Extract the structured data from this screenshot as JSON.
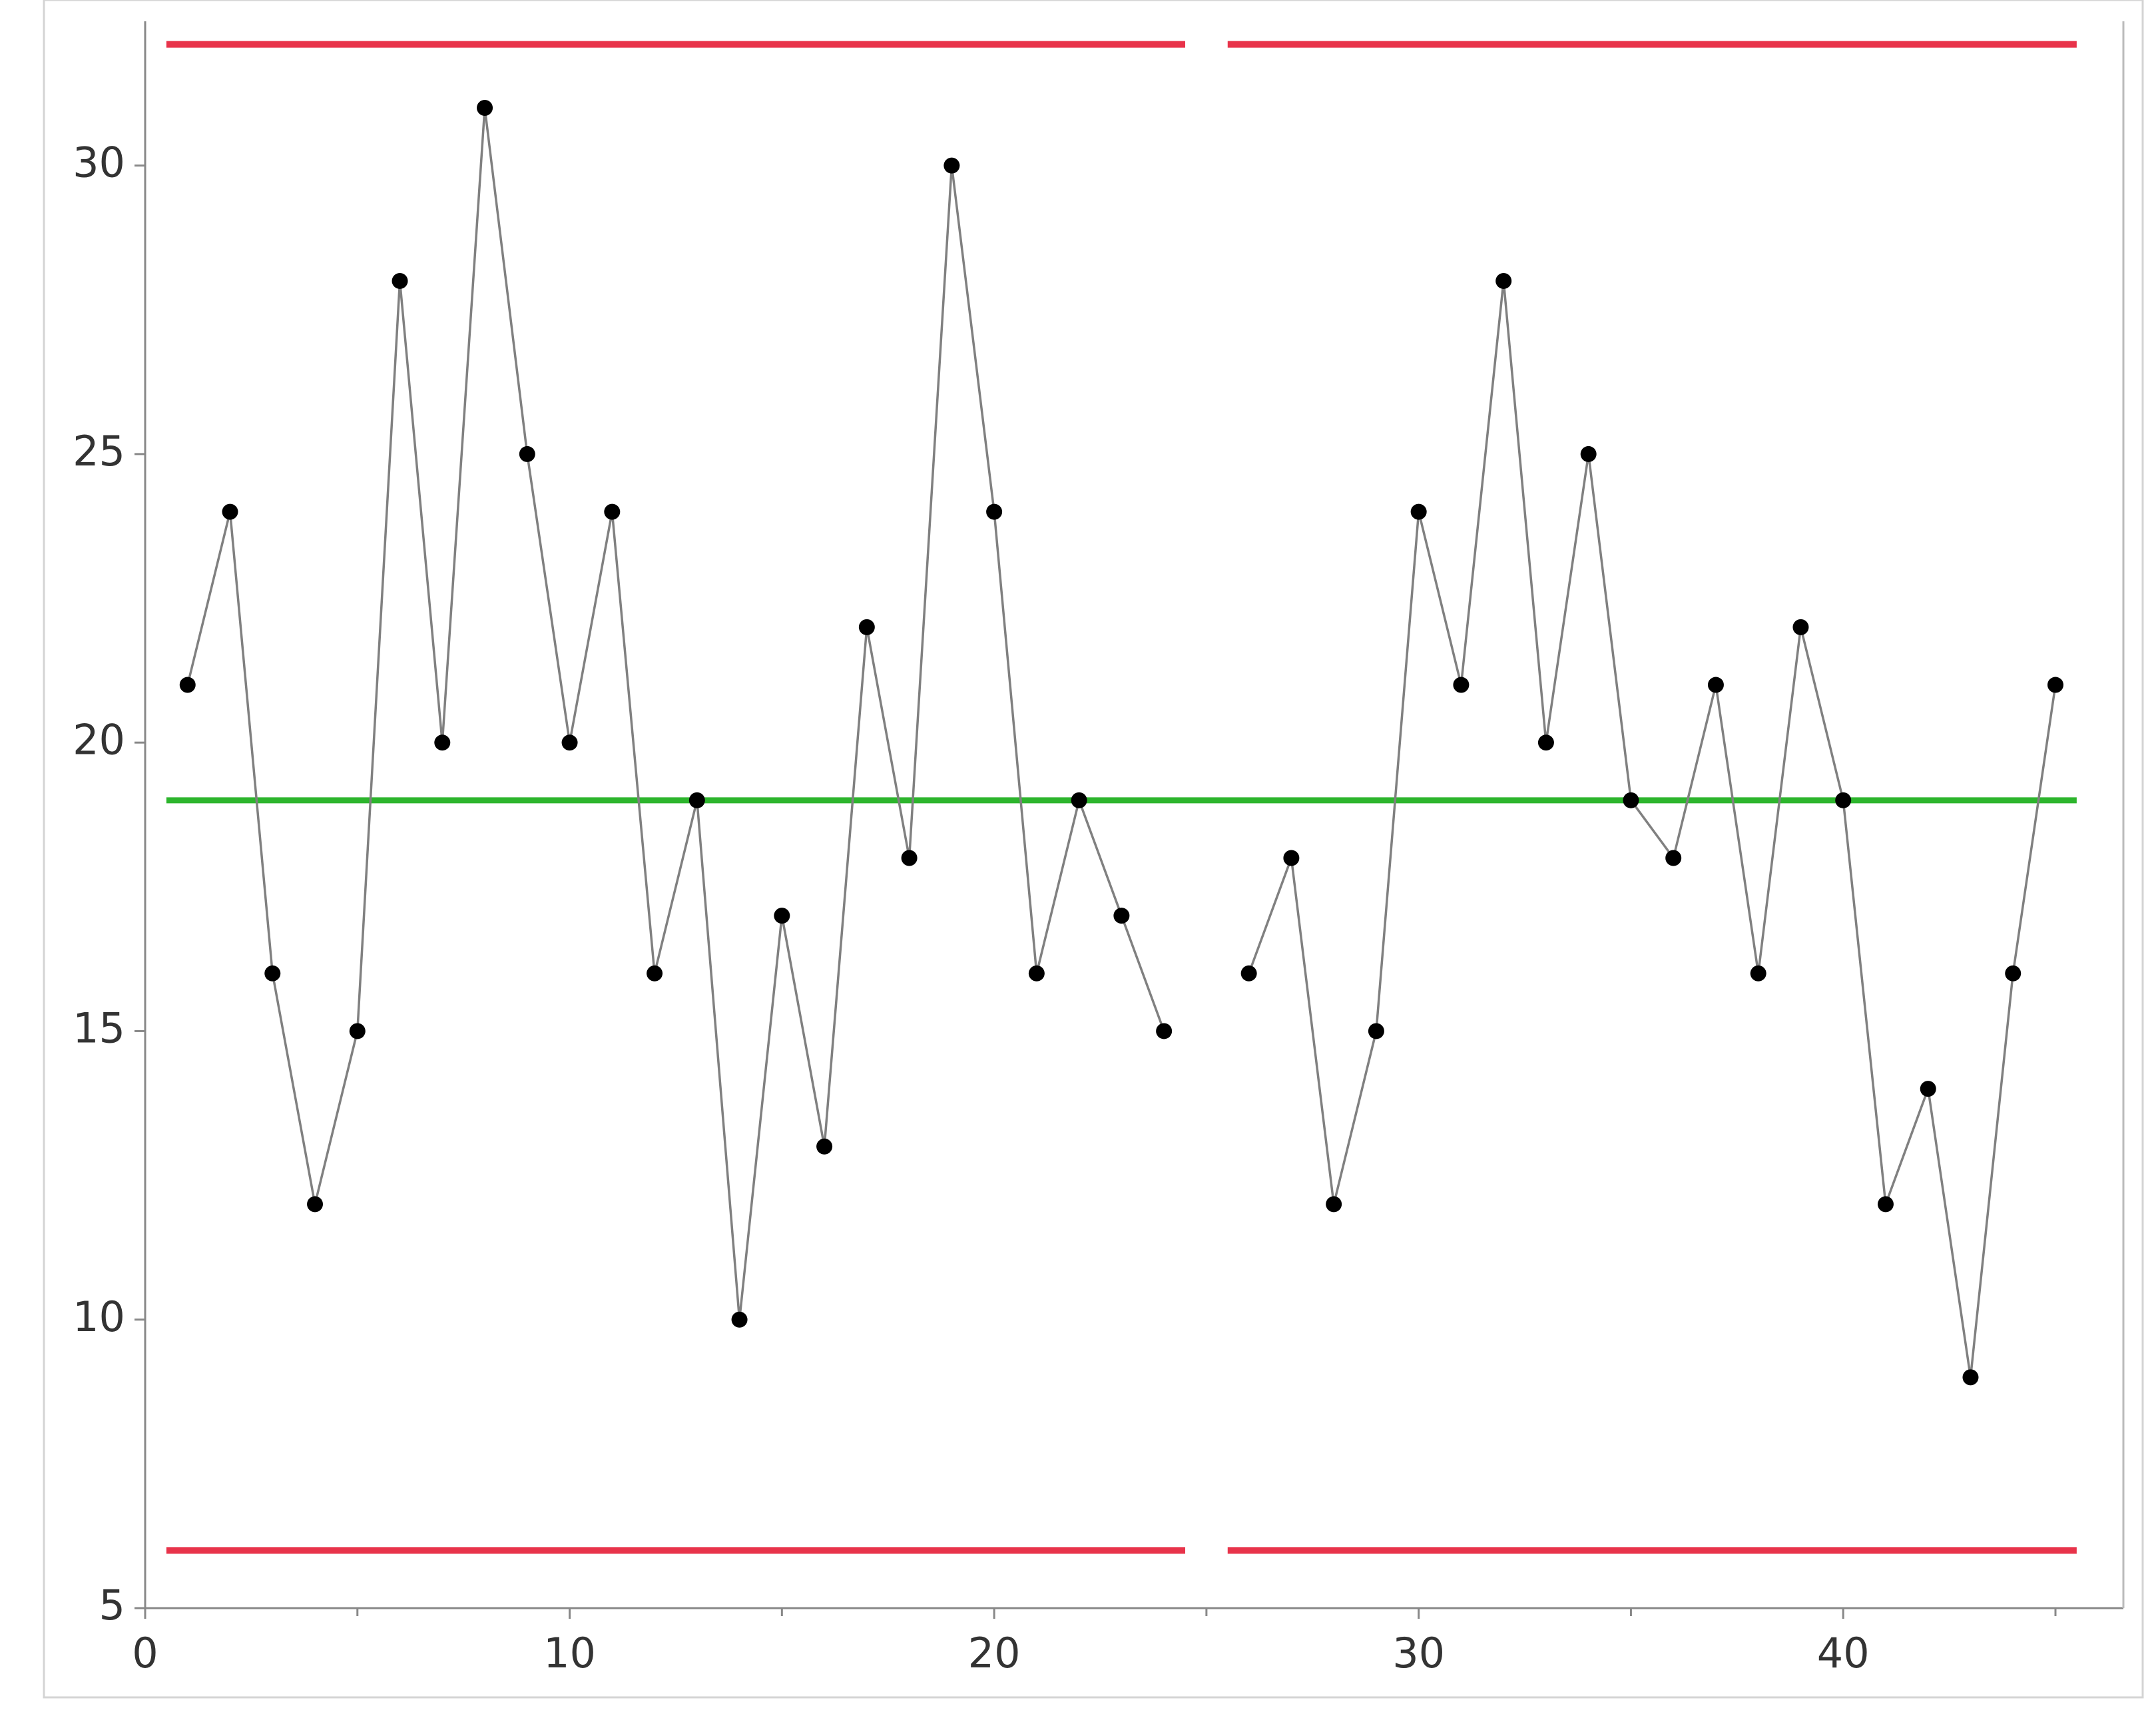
{
  "chart_data": {
    "type": "control",
    "x": [
      1,
      2,
      3,
      4,
      5,
      6,
      7,
      8,
      9,
      10,
      11,
      12,
      13,
      14,
      15,
      16,
      17,
      18,
      19,
      20,
      21,
      22,
      23,
      24,
      25,
      26,
      27,
      28,
      29,
      30,
      31,
      32,
      33,
      34,
      35,
      36,
      37,
      38,
      39,
      40,
      41,
      42,
      43,
      44,
      45
    ],
    "series": [
      {
        "color": "#808080",
        "marker_color": "#000000",
        "values": [
          21,
          24,
          16,
          12,
          15,
          28,
          20,
          31,
          25,
          20,
          24,
          16,
          19,
          10,
          17,
          13,
          22,
          18,
          30,
          24,
          16,
          19,
          17,
          15,
          null,
          16,
          18,
          12,
          15,
          24,
          21,
          28,
          20,
          25,
          19,
          18,
          21,
          16,
          22,
          19,
          12,
          14,
          9,
          16,
          21
        ]
      }
    ],
    "ucl": 32.1,
    "lcl": 6,
    "limit_color": "#e8334a",
    "center": 19,
    "center_color": "#2db52d",
    "xlim": [
      0,
      46.6
    ],
    "xticks": [
      0,
      10,
      20,
      30,
      40
    ],
    "xminor_ticks": [
      5,
      15,
      25,
      35,
      45
    ],
    "ylim": [
      5,
      32.5
    ],
    "yticks": [
      5,
      10,
      15,
      20,
      25,
      30
    ]
  }
}
